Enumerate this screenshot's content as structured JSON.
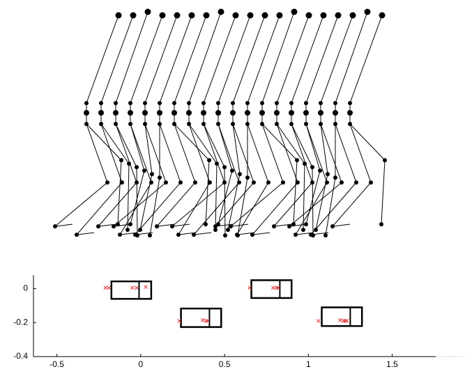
{
  "chart_data": {
    "type": "scatter",
    "xlim": [
      -0.64,
      1.76
    ],
    "ylim": [
      -0.4,
      0.08
    ],
    "xticks": [
      -0.5,
      0,
      0.5,
      1,
      1.5
    ],
    "yticks": [
      0,
      -0.2,
      -0.4
    ],
    "boxes": [
      {
        "x": [
          -0.175,
          0.0625
        ],
        "y": [
          -0.06,
          0.043
        ],
        "split": -0.01
      },
      {
        "x": [
          0.24,
          0.48
        ],
        "y": [
          -0.226,
          -0.117
        ],
        "split": 0.41
      },
      {
        "x": [
          0.66,
          0.9
        ],
        "y": [
          -0.055,
          0.05
        ],
        "split": 0.83
      },
      {
        "x": [
          1.08,
          1.32
        ],
        "y": [
          -0.22,
          -0.11
        ],
        "split": 1.25
      }
    ],
    "points": {
      "color": "#e03030",
      "x": [
        -0.21,
        -0.19,
        -0.05,
        -0.025,
        0.03,
        0.23,
        0.37,
        0.39,
        0.4,
        0.65,
        0.79,
        0.81,
        0.82,
        1.06,
        1.19,
        1.21,
        1.22,
        1.23
      ],
      "y": [
        0.005,
        0.005,
        0.005,
        0.005,
        0.01,
        -0.19,
        -0.185,
        -0.19,
        -0.19,
        0.005,
        0.005,
        0.005,
        0.005,
        -0.19,
        -0.185,
        -0.19,
        -0.19,
        -0.19
      ]
    }
  }
}
